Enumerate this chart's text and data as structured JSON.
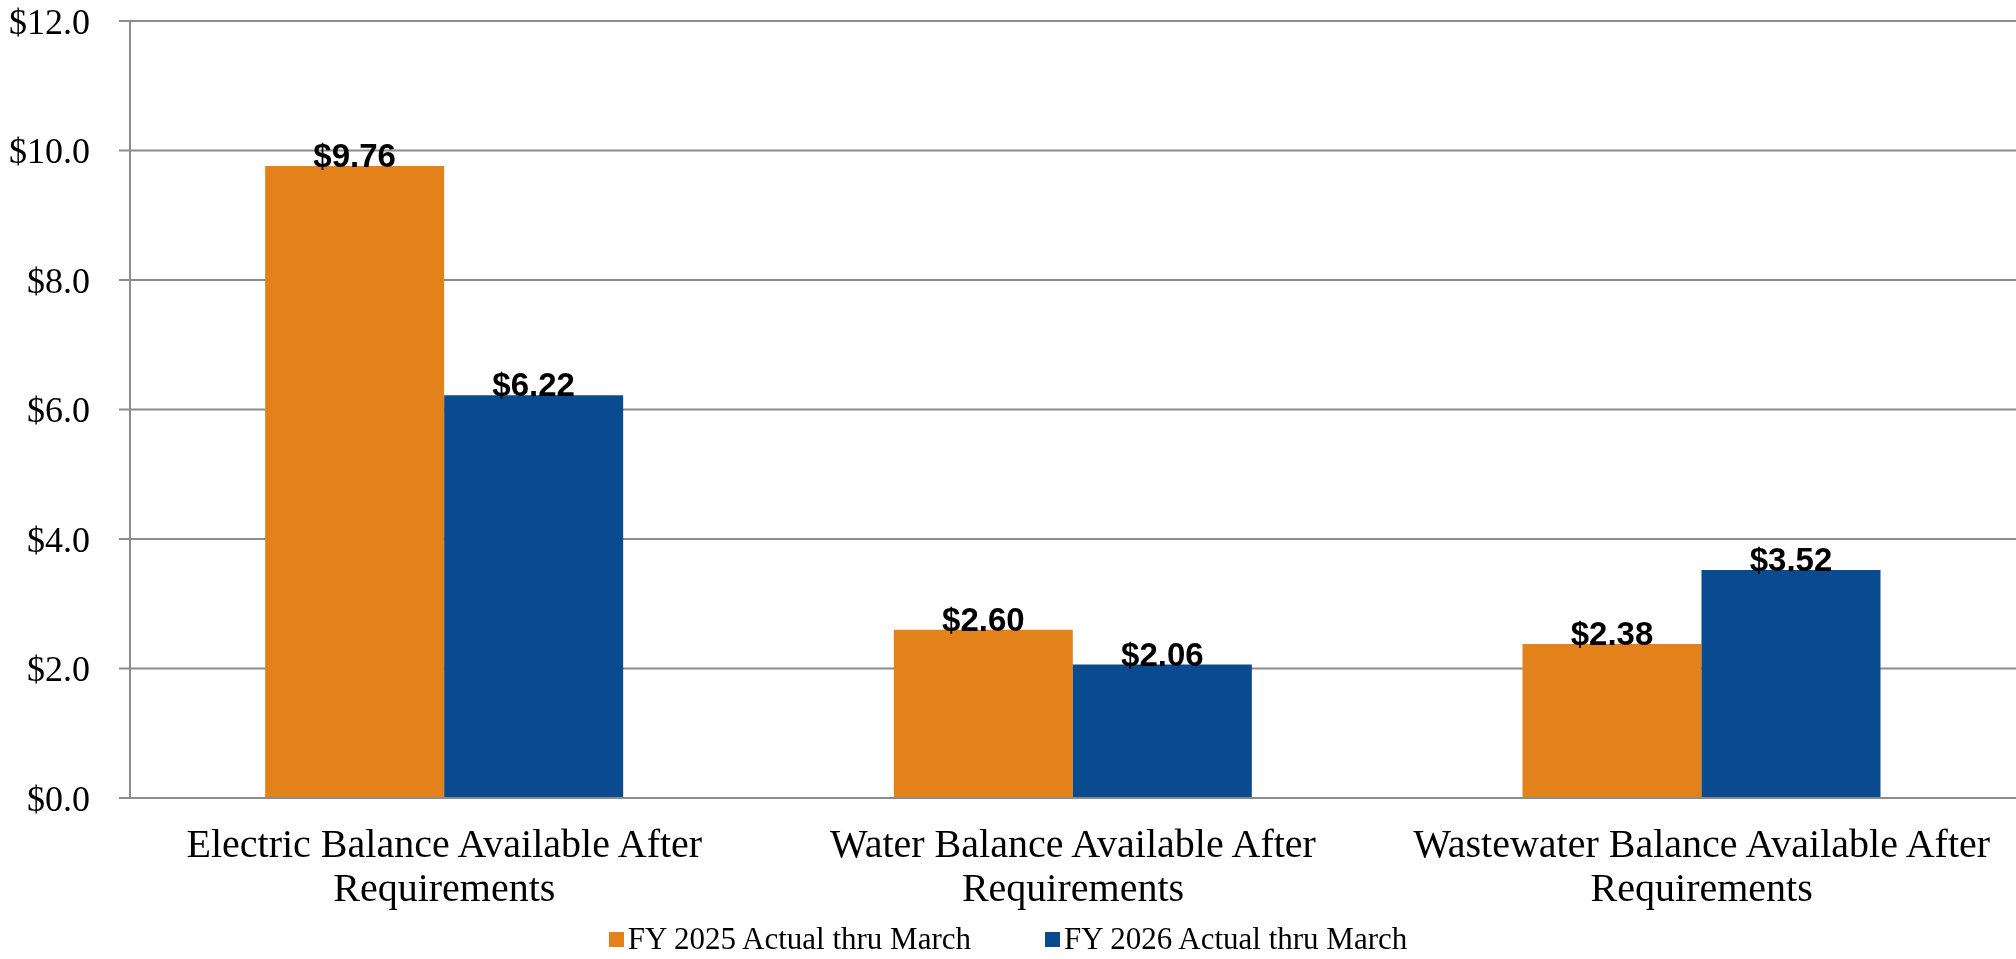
{
  "chart_data": {
    "type": "bar",
    "categories": [
      "Electric Balance Available After Requirements",
      "Water Balance Available After Requirements",
      "Wastewater Balance Available After Requirements"
    ],
    "series": [
      {
        "name": "FY 2025 Actual thru March",
        "color": "#e3821a",
        "values": [
          9.76,
          2.6,
          2.38
        ],
        "value_labels": [
          "$9.76",
          "$2.60",
          "$2.38"
        ]
      },
      {
        "name": "FY 2026 Actual thru March",
        "color": "#0a4a8f",
        "values": [
          6.22,
          2.06,
          3.52
        ],
        "value_labels": [
          "$6.22",
          "$2.06",
          "$3.52"
        ]
      }
    ],
    "ylim": [
      0,
      12
    ],
    "yticks": [
      {
        "value": 0,
        "label": "$0.0"
      },
      {
        "value": 2,
        "label": "$2.0"
      },
      {
        "value": 4,
        "label": "$4.0"
      },
      {
        "value": 6,
        "label": "$6.0"
      },
      {
        "value": 8,
        "label": "$8.0"
      },
      {
        "value": 10,
        "label": "$10.0"
      },
      {
        "value": 12,
        "label": "$12.0"
      }
    ],
    "grid": "y",
    "legend": "bottom"
  }
}
